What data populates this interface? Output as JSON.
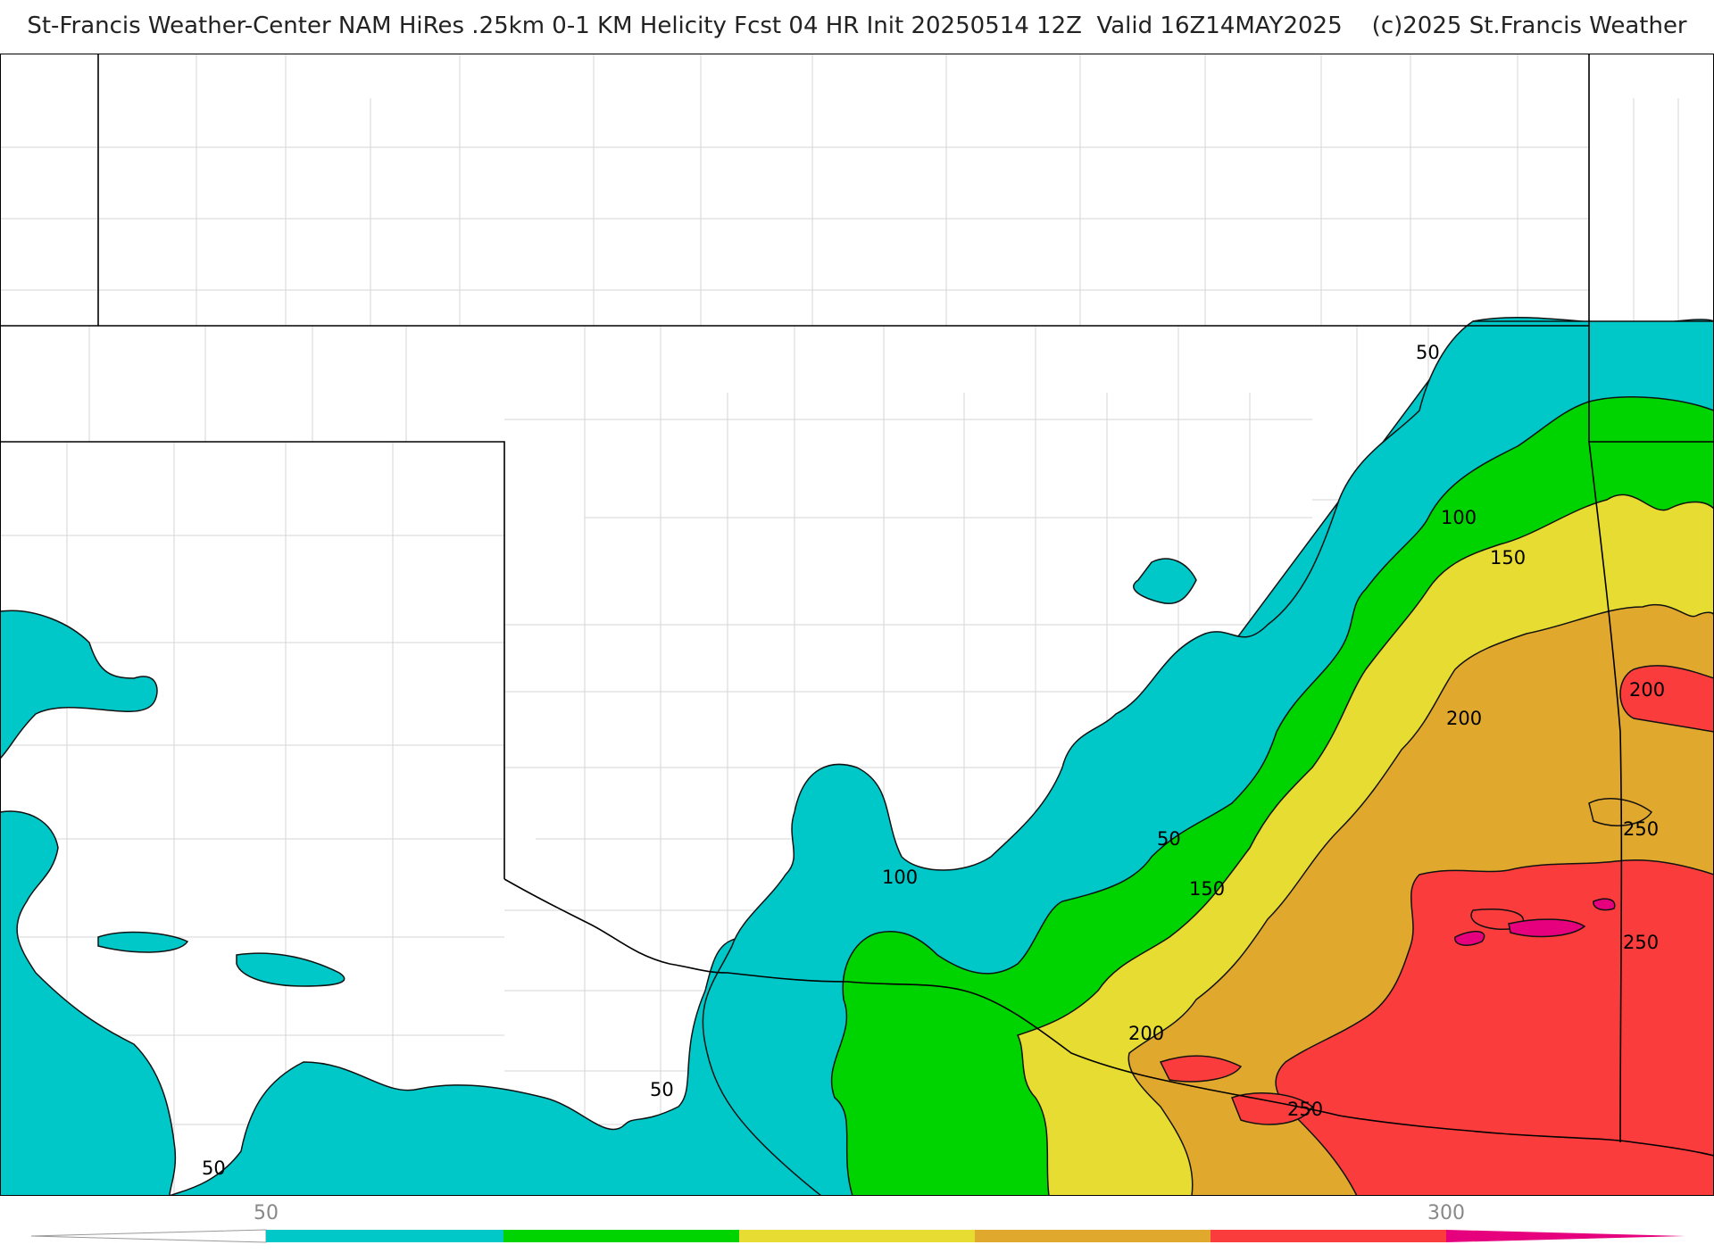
{
  "header": {
    "title": "St-Francis Weather-Center NAM HiRes .25km 0-1 KM Helicity Fcst 04 HR Init 20250514 12Z  Valid 16Z14MAY2025    (c)2025 St.Francis Weather"
  },
  "contour_labels": [
    "50",
    "100",
    "150",
    "200",
    "250"
  ],
  "colorbar": {
    "tick_labels": [
      "50",
      "300"
    ],
    "colors": {
      "50-100": "#00c8c8",
      "100-150": "#00d400",
      "150-200": "#e6dc32",
      "200-250": "#e1a82e",
      "250-300": "#fa3c3c",
      "300+": "#e6007d"
    }
  }
}
